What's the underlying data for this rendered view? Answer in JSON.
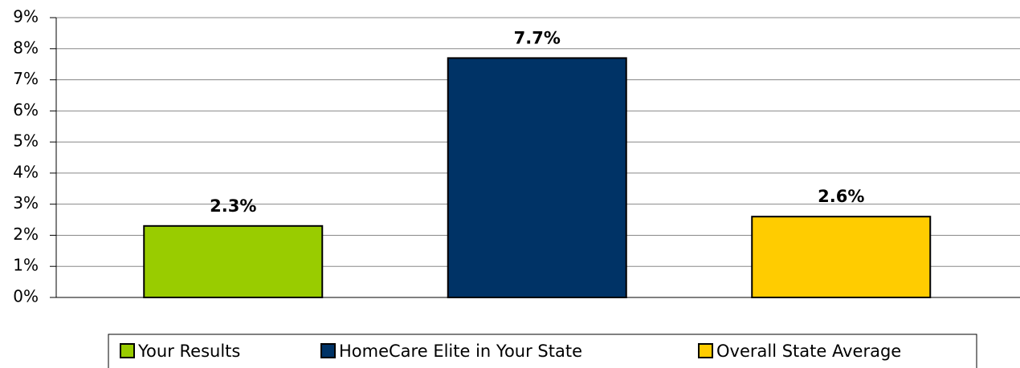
{
  "chart_data": {
    "type": "bar",
    "categories": [
      "Your Results",
      "HomeCare Elite in Your State",
      "Overall State Average"
    ],
    "values": [
      2.3,
      7.7,
      2.6
    ],
    "value_labels": [
      "2.3%",
      "7.7%",
      "2.6%"
    ],
    "colors": [
      "#99cc00",
      "#003366",
      "#ffcc00"
    ],
    "ylim": [
      0,
      9
    ],
    "yticks": [
      {
        "value": 0,
        "label": "0%"
      },
      {
        "value": 1,
        "label": "1%"
      },
      {
        "value": 2,
        "label": "2%"
      },
      {
        "value": 3,
        "label": "3%"
      },
      {
        "value": 4,
        "label": "4%"
      },
      {
        "value": 5,
        "label": "5%"
      },
      {
        "value": 6,
        "label": "6%"
      },
      {
        "value": 7,
        "label": "7%"
      },
      {
        "value": 8,
        "label": "8%"
      },
      {
        "value": 9,
        "label": "9%"
      }
    ],
    "grid": true,
    "legend": "bottom"
  }
}
